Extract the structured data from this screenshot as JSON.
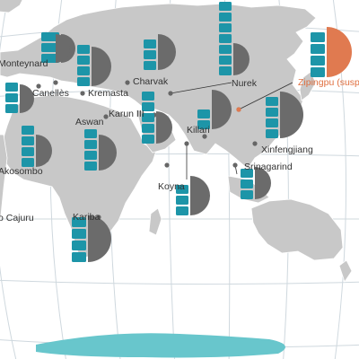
{
  "colors": {
    "land": "#c8c8c8",
    "water": "#ffffff",
    "grid": "#cfd8de",
    "border": "#ffffff",
    "teal": "#1d95a8",
    "dark": "#6b6b6b",
    "accent": "#e07a50",
    "label": "#333333"
  },
  "dams": [
    {
      "key": "monteynard",
      "label": "Monteynard",
      "blocks": 3,
      "semi": "dark"
    },
    {
      "key": "canelles",
      "label": "Canellès",
      "blocks": 3,
      "semi": "dark"
    },
    {
      "key": "kremasta",
      "label": "Kremasta",
      "blocks": 4,
      "semi": "dark"
    },
    {
      "key": "charvak",
      "label": "Charvak",
      "blocks": 3,
      "semi": "dark"
    },
    {
      "key": "nurek",
      "label": "Nurek",
      "blocks": 7,
      "semi": "dark"
    },
    {
      "key": "zipingpu",
      "label": "Zipingpu (suspe",
      "blocks": 4,
      "semi": "accent"
    },
    {
      "key": "karun",
      "label": "Karun III",
      "blocks": 5,
      "semi": "dark"
    },
    {
      "key": "aswan",
      "label": "Aswan",
      "blocks": 4,
      "semi": "dark"
    },
    {
      "key": "killari",
      "label": "Killari",
      "blocks": 2,
      "semi": "dark"
    },
    {
      "key": "xinfengjiang",
      "label": "Xinfengjiang",
      "blocks": 4,
      "semi": "dark"
    },
    {
      "key": "srinagarind",
      "label": "Srinagarind",
      "blocks": 3,
      "semi": "dark"
    },
    {
      "key": "koyna",
      "label": "Koyna",
      "blocks": 3,
      "semi": "dark"
    },
    {
      "key": "akosombo",
      "label": "Akosombo",
      "blocks": 4,
      "semi": "dark"
    },
    {
      "key": "cajuru",
      "label": "o Cajuru",
      "blocks": 0,
      "semi": "none"
    },
    {
      "key": "kariba",
      "label": "Kariba",
      "blocks": 4,
      "semi": "dark"
    },
    {
      "key": "left",
      "label": "",
      "blocks": 3,
      "semi": "dark"
    }
  ]
}
